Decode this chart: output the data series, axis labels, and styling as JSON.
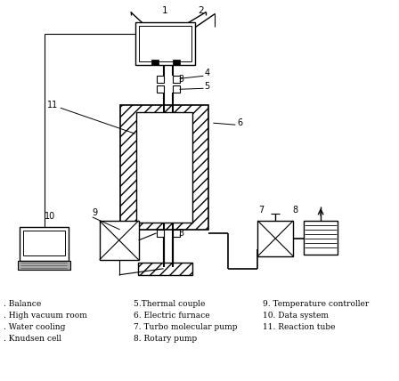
{
  "bg_color": "#ffffff",
  "line_color": "#000000",
  "legend_items": [
    [
      ". Balance",
      "5.Thermal couple",
      "9. Temperature controller"
    ],
    [
      ". High vacuum room",
      "6. Electric furnace",
      "10. Data system"
    ],
    [
      ". Water cooling",
      "7. Turbo molecular pump",
      "11. Reaction tube"
    ],
    [
      ". Knudsen cell",
      "8. Rotary pump",
      ""
    ]
  ]
}
